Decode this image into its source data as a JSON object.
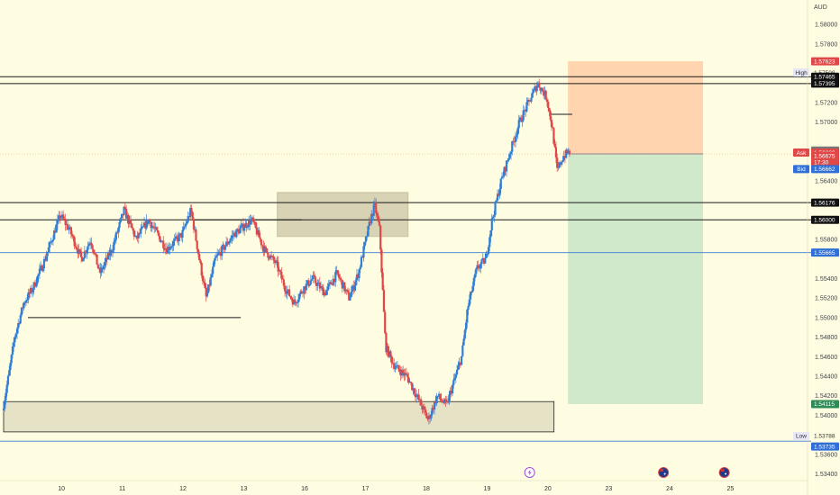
{
  "currency": "AUD",
  "colors": {
    "background": "#fffde1",
    "up": "#2f7fd6",
    "down": "#e04848",
    "stop_zone": "#ffcca6",
    "target_zone": "#cbe7c9",
    "supply_box": "#cfc9a9",
    "level_line": "#1a1a1a",
    "blue_line": "#3a7bd5"
  },
  "tags": {
    "high_label": "High",
    "low_label": "Low",
    "ask_label": "Ask",
    "bid_label": "Bid",
    "stop_price": "1.57623",
    "high_price": "1.57508",
    "level_1": "1.57465",
    "level_2": "1.57395",
    "last_price_grey": "1.56709",
    "ask_price": "1.56689",
    "last_price": "1.56675",
    "countdown": "17:30",
    "bid_price": "1.56662",
    "level_3": "1.56176",
    "level_4": "1.56000",
    "blue_level": "1.55665",
    "target_price": "1.54115",
    "low_price": "1.53788",
    "blue_low": "1.53735"
  },
  "events": {
    "flash_icon": "lightning-icon",
    "flag_icon": "australia-flag-icon"
  },
  "chart_data": {
    "type": "candlestick",
    "ylim": [
      1.5335,
      1.5825
    ],
    "y_ticks": [
      "1.58000",
      "1.57800",
      "1.57200",
      "1.57000",
      "1.56400",
      "1.55800",
      "1.55400",
      "1.55200",
      "1.55000",
      "1.54800",
      "1.54600",
      "1.54400",
      "1.54200",
      "1.54000",
      "1.53600",
      "1.53400"
    ],
    "y_tick_values": [
      1.58,
      1.578,
      1.572,
      1.57,
      1.564,
      1.558,
      1.554,
      1.552,
      1.55,
      1.548,
      1.546,
      1.544,
      1.542,
      1.54,
      1.536,
      1.534
    ],
    "x_ticks": [
      {
        "label": "10",
        "day": 10
      },
      {
        "label": "11",
        "day": 11
      },
      {
        "label": "12",
        "day": 12
      },
      {
        "label": "13",
        "day": 13
      },
      {
        "label": "16",
        "day": 14
      },
      {
        "label": "17",
        "day": 15
      },
      {
        "label": "18",
        "day": 16
      },
      {
        "label": "19",
        "day": 17
      },
      {
        "label": "20",
        "day": 18
      },
      {
        "label": "23",
        "day": 19
      },
      {
        "label": "24",
        "day": 20
      },
      {
        "label": "25",
        "day": 21
      }
    ],
    "price_path": [
      [
        9.5,
        1.5405
      ],
      [
        9.6,
        1.544
      ],
      [
        9.7,
        1.548
      ],
      [
        9.85,
        1.5515
      ],
      [
        10.0,
        1.553
      ],
      [
        10.2,
        1.556
      ],
      [
        10.45,
        1.5605
      ],
      [
        10.6,
        1.559
      ],
      [
        10.8,
        1.556
      ],
      [
        10.95,
        1.558
      ],
      [
        11.1,
        1.5545
      ],
      [
        11.3,
        1.557
      ],
      [
        11.5,
        1.561
      ],
      [
        11.7,
        1.558
      ],
      [
        11.9,
        1.56
      ],
      [
        12.2,
        1.557
      ],
      [
        12.45,
        1.5585
      ],
      [
        12.6,
        1.561
      ],
      [
        12.75,
        1.5555
      ],
      [
        12.85,
        1.552
      ],
      [
        13.0,
        1.556
      ],
      [
        13.3,
        1.5585
      ],
      [
        13.6,
        1.56
      ],
      [
        13.8,
        1.557
      ],
      [
        14.0,
        1.5555
      ],
      [
        14.15,
        1.553
      ],
      [
        14.3,
        1.5515
      ],
      [
        14.45,
        1.553
      ],
      [
        14.6,
        1.554
      ],
      [
        14.8,
        1.5525
      ],
      [
        15.0,
        1.5545
      ],
      [
        15.2,
        1.552
      ],
      [
        15.35,
        1.5545
      ],
      [
        15.55,
        1.56
      ],
      [
        15.62,
        1.5615
      ],
      [
        15.7,
        1.559
      ],
      [
        15.8,
        1.547
      ],
      [
        15.95,
        1.545
      ],
      [
        16.15,
        1.544
      ],
      [
        16.35,
        1.5415
      ],
      [
        16.5,
        1.5395
      ],
      [
        16.65,
        1.542
      ],
      [
        16.8,
        1.541
      ],
      [
        16.9,
        1.543
      ],
      [
        17.05,
        1.546
      ],
      [
        17.15,
        1.551
      ],
      [
        17.3,
        1.555
      ],
      [
        17.45,
        1.556
      ],
      [
        17.55,
        1.56
      ],
      [
        17.7,
        1.564
      ],
      [
        17.85,
        1.567
      ],
      [
        18.0,
        1.57
      ],
      [
        18.15,
        1.572
      ],
      [
        18.3,
        1.574
      ],
      [
        18.45,
        1.5725
      ],
      [
        18.55,
        1.569
      ],
      [
        18.62,
        1.565
      ],
      [
        18.72,
        1.5665
      ],
      [
        18.82,
        1.567
      ]
    ],
    "day_scale": {
      "first_day": 9.5,
      "last_day": 21.0
    },
    "short_position": {
      "entry": 1.56675,
      "stop": 1.57623,
      "target": 1.54115,
      "start_day": 18.78,
      "end_day": 21.0
    },
    "supply_zone": {
      "x_from": 14.0,
      "x_to": 16.15,
      "y_from": 1.5583,
      "y_to": 1.5628
    },
    "demand_zone": {
      "x_from": 9.5,
      "x_to": 18.55,
      "y_from": 1.5383,
      "y_to": 1.5414
    },
    "horizontal_levels": [
      {
        "price": 1.57465,
        "color": "dark"
      },
      {
        "price": 1.57395,
        "color": "dark"
      },
      {
        "price": 1.56176,
        "color": "dark"
      },
      {
        "price": 1.56,
        "color": "dark"
      },
      {
        "price": 1.55665,
        "color": "blue"
      },
      {
        "price": 1.53735,
        "color": "blue"
      }
    ],
    "short_lines": [
      {
        "price": 1.55,
        "x_from": 9.9,
        "x_to": 13.4
      },
      {
        "price": 1.56,
        "x_from": 12.6,
        "x_to": 14.4
      },
      {
        "price": 1.5708,
        "x_from": 18.48,
        "x_to": 18.85
      }
    ],
    "event_days": [
      18.0,
      20.2,
      21.2
    ]
  }
}
